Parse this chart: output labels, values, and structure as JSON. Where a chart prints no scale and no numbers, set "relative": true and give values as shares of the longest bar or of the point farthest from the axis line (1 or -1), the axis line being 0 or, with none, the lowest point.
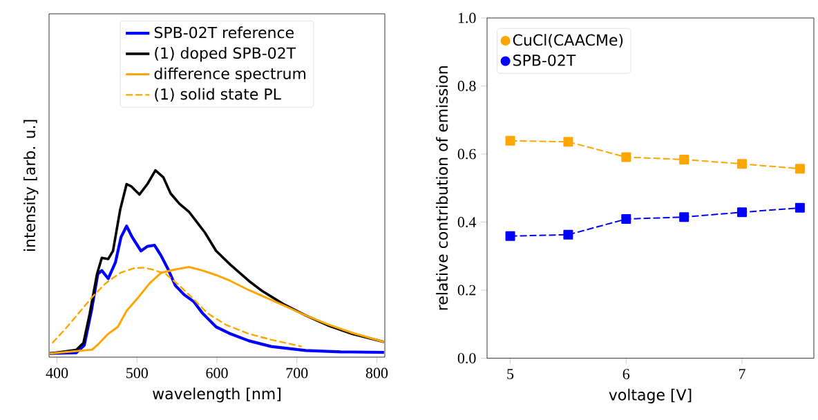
{
  "chart_data": [
    {
      "type": "line",
      "relative": true,
      "xlabel": "wavelength [nm]",
      "ylabel": "intensity [arb. u.]",
      "xlim": [
        390,
        810
      ],
      "xticks": [
        400,
        500,
        600,
        700,
        800
      ],
      "legend": "top",
      "marker": "none",
      "series": [
        {
          "name": "SPB-02T reference",
          "color": "#0000ff",
          "line_style": "solid",
          "x": [
            391,
            424,
            434,
            443,
            451,
            456,
            464,
            473,
            480,
            487,
            494,
            505,
            513,
            522,
            530,
            539,
            548,
            559,
            571,
            582,
            599,
            617,
            640,
            668,
            711,
            755,
            809
          ],
          "values": [
            0,
            0.004,
            0.044,
            0.233,
            0.434,
            0.453,
            0.409,
            0.497,
            0.635,
            0.696,
            0.635,
            0.56,
            0.585,
            0.591,
            0.535,
            0.459,
            0.371,
            0.321,
            0.283,
            0.22,
            0.145,
            0.107,
            0.069,
            0.038,
            0.016,
            0.009,
            0.006
          ]
        },
        {
          "name": "(1) doped SPB-02T",
          "color": "#000000",
          "line_style": "solid",
          "x": [
            391,
            424,
            433,
            441,
            450,
            456,
            464,
            470,
            479,
            487,
            493,
            503,
            513,
            523,
            533,
            542,
            553,
            565,
            574,
            585,
            599,
            617,
            640,
            657,
            683,
            711,
            740,
            769,
            809
          ],
          "values": [
            0,
            0.019,
            0.057,
            0.22,
            0.434,
            0.522,
            0.516,
            0.56,
            0.786,
            0.925,
            0.912,
            0.868,
            0.925,
            1.0,
            0.962,
            0.874,
            0.818,
            0.774,
            0.723,
            0.66,
            0.56,
            0.484,
            0.396,
            0.34,
            0.27,
            0.208,
            0.151,
            0.107,
            0.063
          ]
        },
        {
          "name": "difference spectrum",
          "color": "#ffa500",
          "line_style": "solid",
          "x": [
            391,
            424,
            444,
            453,
            464,
            476,
            487,
            502,
            516,
            530,
            548,
            565,
            582,
            599,
            617,
            640,
            663,
            686,
            711,
            740,
            769,
            809
          ],
          "values": [
            0,
            0.013,
            0.021,
            0.057,
            0.107,
            0.145,
            0.233,
            0.308,
            0.384,
            0.44,
            0.459,
            0.472,
            0.453,
            0.428,
            0.396,
            0.346,
            0.302,
            0.258,
            0.208,
            0.157,
            0.113,
            0.063
          ]
        },
        {
          "name": "(1) solid state PL",
          "color": "#ffa500",
          "line_style": "dashed",
          "x": [
            394,
            410,
            427,
            444,
            461,
            479,
            496,
            507,
            519,
            536,
            553,
            571,
            588,
            611,
            640,
            668,
            706
          ],
          "values": [
            0.057,
            0.132,
            0.22,
            0.308,
            0.384,
            0.44,
            0.465,
            0.469,
            0.459,
            0.434,
            0.371,
            0.296,
            0.22,
            0.157,
            0.107,
            0.075,
            0.038
          ]
        }
      ]
    },
    {
      "type": "line",
      "xlabel": "voltage [V]",
      "ylabel": "relative contribution of emission",
      "xlim": [
        4.8,
        7.62
      ],
      "xticks": [
        5,
        6,
        7
      ],
      "ylim": [
        0,
        1
      ],
      "yticks": [
        {
          "value": 0,
          "label": "0.0"
        },
        {
          "value": 0.2,
          "label": "0.2"
        },
        {
          "value": 0.4,
          "label": "0.4"
        },
        {
          "value": 0.6,
          "label": "0.6"
        },
        {
          "value": 0.8,
          "label": "0.8"
        },
        {
          "value": 1,
          "label": "1.0"
        }
      ],
      "legend": "top left",
      "marker": "square",
      "line_style": "dashed",
      "x": [
        5,
        5.5,
        6,
        6.5,
        7,
        7.5
      ],
      "series": [
        {
          "name": "CuCl(CAACMe)",
          "color": "#ffa500",
          "values": [
            0.639,
            0.636,
            0.591,
            0.584,
            0.571,
            0.557
          ]
        },
        {
          "name": "SPB-02T",
          "color": "#0000ff",
          "values": [
            0.359,
            0.363,
            0.409,
            0.415,
            0.429,
            0.442
          ]
        }
      ]
    }
  ]
}
